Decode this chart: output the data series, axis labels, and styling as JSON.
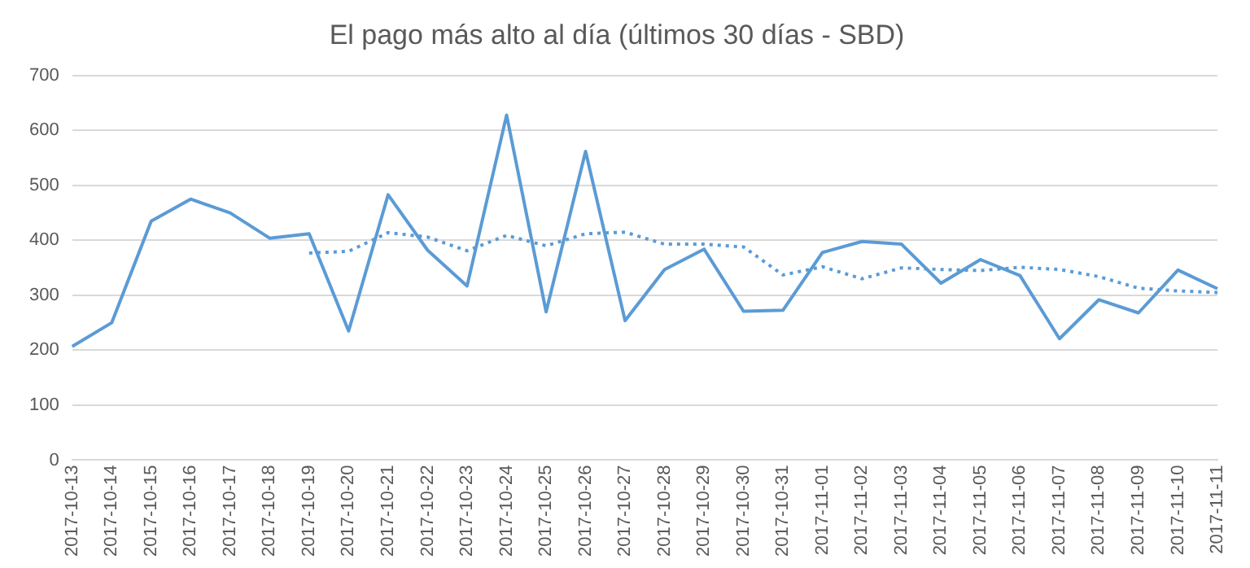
{
  "chart_data": {
    "type": "line",
    "title": "El pago más alto al día (últimos 30 días - SBD)",
    "categories": [
      "2017-10-13",
      "2017-10-14",
      "2017-10-15",
      "2017-10-16",
      "2017-10-17",
      "2017-10-18",
      "2017-10-19",
      "2017-10-20",
      "2017-10-21",
      "2017-10-22",
      "2017-10-23",
      "2017-10-24",
      "2017-10-25",
      "2017-10-26",
      "2017-10-27",
      "2017-10-28",
      "2017-10-29",
      "2017-10-30",
      "2017-10-31",
      "2017-11-01",
      "2017-11-02",
      "2017-11-03",
      "2017-11-04",
      "2017-11-05",
      "2017-11-06",
      "2017-11-07",
      "2017-11-08",
      "2017-11-09",
      "2017-11-10",
      "2017-11-11"
    ],
    "series": [
      {
        "color": "#5b9bd5",
        "line_style": "solid",
        "values": [
          207,
          250,
          435,
          475,
          450,
          404,
          412,
          235,
          483,
          382,
          317,
          628,
          270,
          562,
          254,
          347,
          384,
          271,
          273,
          378,
          398,
          393,
          322,
          365,
          336,
          221,
          292,
          268,
          346,
          312
        ]
      },
      {
        "color": "#5b9bd5",
        "line_style": "dotted",
        "values": [
          null,
          null,
          null,
          null,
          null,
          null,
          377,
          380,
          414,
          406,
          381,
          409,
          390,
          412,
          415,
          393,
          393,
          388,
          337,
          352,
          330,
          350,
          347,
          345,
          351,
          347,
          334,
          313,
          308,
          305
        ]
      }
    ],
    "ylim": [
      0,
      700
    ],
    "yticks": [
      0,
      100,
      200,
      300,
      400,
      500,
      600,
      700
    ],
    "grid": "y",
    "legend": false,
    "marker": "none"
  }
}
